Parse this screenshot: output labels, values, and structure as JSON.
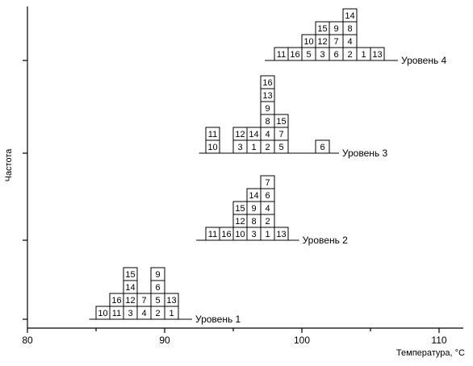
{
  "chart_data": {
    "type": "dot-plot (stacked histogram)",
    "xlabel": "Температура, °С",
    "ylabel": "Частота",
    "xlim": [
      80,
      112
    ],
    "x_ticks": [
      "80",
      "90",
      "100",
      "110"
    ],
    "bin_width": 1,
    "levels": [
      {
        "name": "Уровень 1",
        "stacks": [
          {
            "x": 85.5,
            "values": [
              "10"
            ]
          },
          {
            "x": 86.5,
            "values": [
              "11",
              "16"
            ]
          },
          {
            "x": 87.5,
            "values": [
              "3",
              "12",
              "14",
              "15"
            ]
          },
          {
            "x": 88.5,
            "values": [
              "4",
              "7"
            ]
          },
          {
            "x": 89.5,
            "values": [
              "2",
              "5",
              "6",
              "9"
            ]
          },
          {
            "x": 90.5,
            "values": [
              "1",
              "13"
            ]
          }
        ]
      },
      {
        "name": "Уровень 2",
        "stacks": [
          {
            "x": 93.5,
            "values": [
              "11"
            ]
          },
          {
            "x": 94.5,
            "values": [
              "16"
            ]
          },
          {
            "x": 95.5,
            "values": [
              "10",
              "12",
              "15"
            ]
          },
          {
            "x": 96.5,
            "values": [
              "3",
              "8",
              "9",
              "14"
            ]
          },
          {
            "x": 97.5,
            "values": [
              "1",
              "2",
              "4",
              "6",
              "7"
            ]
          },
          {
            "x": 98.5,
            "values": [
              "13"
            ]
          }
        ]
      },
      {
        "name": "Уровень 3",
        "stacks": [
          {
            "x": 93.5,
            "values": [
              "10",
              "11"
            ]
          },
          {
            "x": 95.5,
            "values": [
              "3",
              "12"
            ]
          },
          {
            "x": 96.5,
            "values": [
              "1",
              "14"
            ]
          },
          {
            "x": 97.5,
            "values": [
              "2",
              "4",
              "8",
              "9",
              "13",
              "16"
            ]
          },
          {
            "x": 98.5,
            "values": [
              "5",
              "7",
              "15"
            ]
          },
          {
            "x": 101.5,
            "values": [
              "6"
            ]
          }
        ]
      },
      {
        "name": "Уровень 4",
        "stacks": [
          {
            "x": 98.5,
            "values": [
              "11"
            ]
          },
          {
            "x": 99.5,
            "values": [
              "16"
            ]
          },
          {
            "x": 100.5,
            "values": [
              "5",
              "10"
            ]
          },
          {
            "x": 101.5,
            "values": [
              "3",
              "12",
              "15"
            ]
          },
          {
            "x": 102.5,
            "values": [
              "6",
              "7",
              "9"
            ]
          },
          {
            "x": 103.5,
            "values": [
              "2",
              "4",
              "8",
              "14"
            ]
          },
          {
            "x": 104.5,
            "values": [
              "1"
            ]
          },
          {
            "x": 105.5,
            "values": [
              "13"
            ]
          }
        ]
      }
    ]
  }
}
